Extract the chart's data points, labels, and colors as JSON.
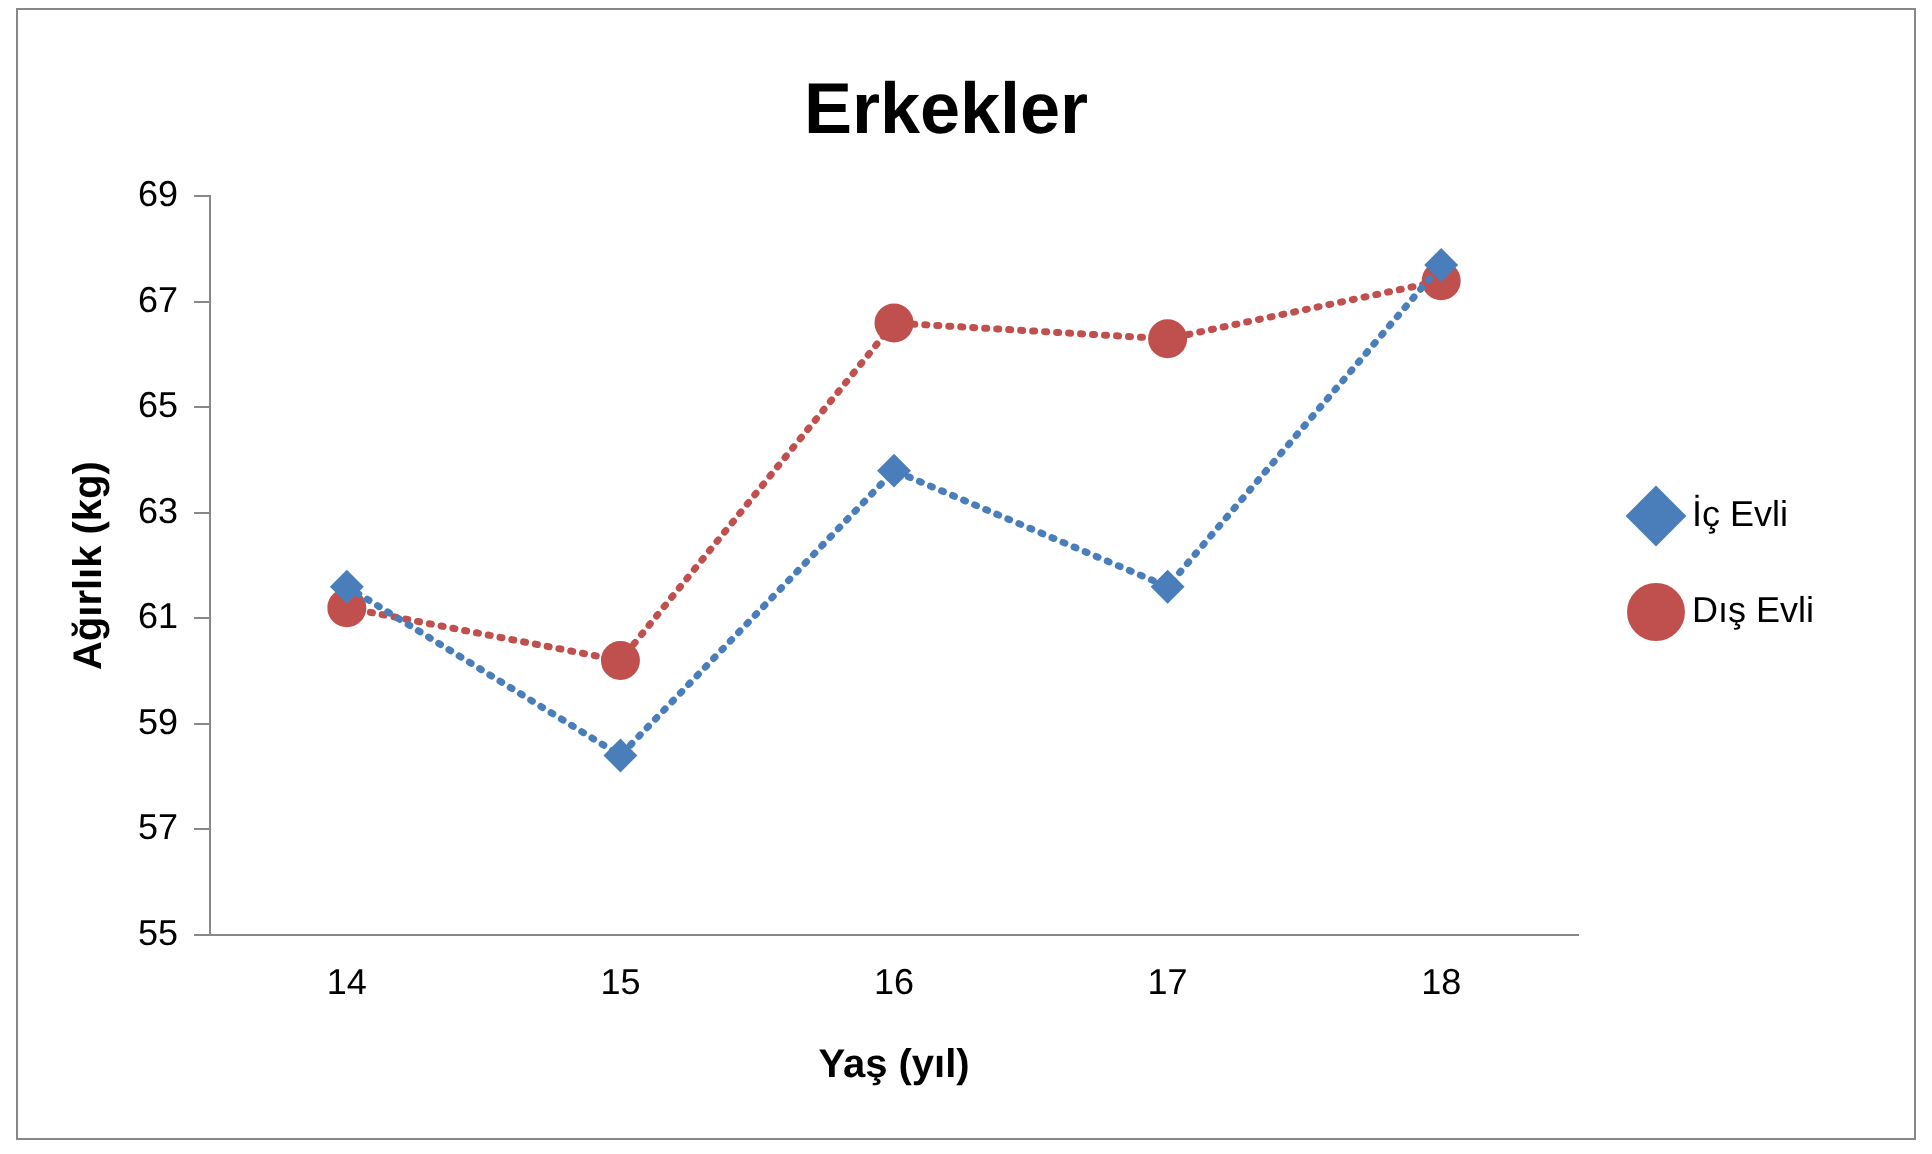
{
  "chart_data": {
    "type": "line",
    "title": "Erkekler",
    "xlabel": "Yaş (yıl)",
    "ylabel": "Ağırlık (kg)",
    "categories": [
      "14",
      "15",
      "16",
      "17",
      "18"
    ],
    "series": [
      {
        "name": "İç Evli",
        "color": "#4a7ebb",
        "marker": "diamond",
        "values": [
          61.6,
          58.4,
          63.8,
          61.6,
          67.7
        ]
      },
      {
        "name": "Dış Evli",
        "color": "#c0504d",
        "marker": "circle",
        "values": [
          61.2,
          60.2,
          66.6,
          66.3,
          67.4
        ]
      }
    ],
    "ylim": [
      55,
      69
    ],
    "yticks": [
      55,
      57,
      59,
      61,
      63,
      65,
      67,
      69
    ],
    "grid": false,
    "legend": "right",
    "line_style": "dotted"
  }
}
